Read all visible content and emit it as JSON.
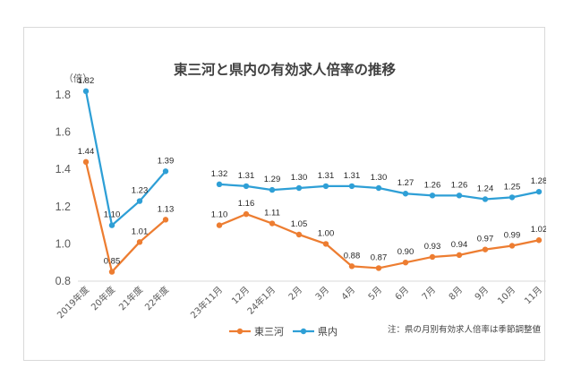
{
  "chart_data": {
    "type": "line",
    "title": "東三河と県内の有効求人倍率の推移",
    "unit_label": "（倍）",
    "ylim": [
      0.8,
      1.8
    ],
    "yticks": [
      "0.8",
      "1.0",
      "1.2",
      "1.4",
      "1.6",
      "1.8"
    ],
    "grid": false,
    "legend_position": "bottom",
    "note": "注：県の月別有効求人倍率は季節調整値",
    "groups": [
      {
        "categories": [
          "2019年度",
          "20年度",
          "21年度",
          "22年度"
        ],
        "series": [
          {
            "name": "東三河",
            "values": [
              1.44,
              0.85,
              1.01,
              1.13
            ],
            "labels": [
              "1.44",
              "0.85",
              "1.01",
              "1.13"
            ]
          },
          {
            "name": "県内",
            "values": [
              1.82,
              1.1,
              1.23,
              1.39
            ],
            "labels": [
              "1.82",
              "1.10",
              "1.23",
              "1.39"
            ]
          }
        ]
      },
      {
        "categories": [
          "23年11月",
          "12月",
          "24年1月",
          "2月",
          "3月",
          "4月",
          "5月",
          "6月",
          "7月",
          "8月",
          "9月",
          "10月",
          "11月"
        ],
        "series": [
          {
            "name": "東三河",
            "values": [
              1.1,
              1.16,
              1.11,
              1.05,
              1.0,
              0.88,
              0.87,
              0.9,
              0.93,
              0.94,
              0.97,
              0.99,
              1.02
            ],
            "labels": [
              "1.10",
              "1.16",
              "1.11",
              "1.05",
              "1.00",
              "0.88",
              "0.87",
              "0.90",
              "0.93",
              "0.94",
              "0.97",
              "0.99",
              "1.02"
            ]
          },
          {
            "name": "県内",
            "values": [
              1.32,
              1.31,
              1.29,
              1.3,
              1.31,
              1.31,
              1.3,
              1.27,
              1.26,
              1.26,
              1.24,
              1.25,
              1.28
            ],
            "labels": [
              "1.32",
              "1.31",
              "1.29",
              "1.30",
              "1.31",
              "1.31",
              "1.30",
              "1.27",
              "1.26",
              "1.26",
              "1.24",
              "1.25",
              "1.28"
            ]
          }
        ]
      }
    ],
    "legend": [
      {
        "name": "東三河",
        "color": "#ed7d31"
      },
      {
        "name": "県内",
        "color": "#2e9fd6"
      }
    ],
    "colors": {
      "東三河": "#ed7d31",
      "県内": "#2e9fd6"
    }
  }
}
